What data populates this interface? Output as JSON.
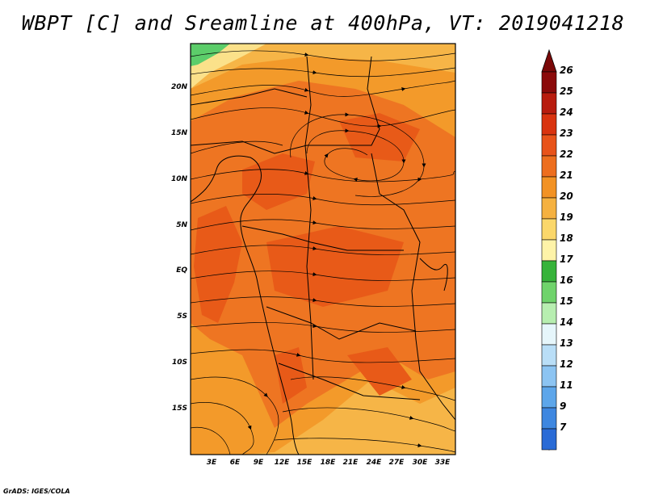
{
  "title": "WBPT [C] and Sreamline at 400hPa, VT: 2019041218",
  "credit": "GrADS: IGES/COLA",
  "map": {
    "variable": "WBPT",
    "units": "C",
    "level": "400hPa",
    "valid_time": "2019041218",
    "lat_labels": [
      "20N",
      "15N",
      "10N",
      "5N",
      "EQ",
      "5S",
      "10S",
      "15S"
    ],
    "lon_labels": [
      "3E",
      "6E",
      "9E",
      "12E",
      "15E",
      "18E",
      "21E",
      "24E",
      "27E",
      "30E",
      "33E"
    ],
    "colorbar": {
      "labels": [
        "26",
        "25",
        "24",
        "23",
        "22",
        "21",
        "20",
        "19",
        "18",
        "17",
        "16",
        "15",
        "14",
        "13",
        "12",
        "11",
        "9",
        "7"
      ],
      "colors": [
        "#8b0a0a",
        "#b81c0e",
        "#d9330f",
        "#e8531a",
        "#ed6e1e",
        "#f29224",
        "#f5b140",
        "#fbd76a",
        "#fef3a8",
        "#36b33a",
        "#6fd36b",
        "#b7eeb0",
        "#e6f6fb",
        "#b9def7",
        "#8cc4f2",
        "#5da6ea",
        "#3e87e0",
        "#2a6bd6"
      ],
      "top_color": "#7a0808",
      "bottom_color": "#1f5fcf"
    },
    "regions": [
      {
        "level": 17,
        "color": "#5ccd6a"
      },
      {
        "level": 19,
        "color": "#fbe18a"
      },
      {
        "level": 20,
        "color": "#f6b547"
      },
      {
        "level": 21,
        "color": "#f39a2a"
      },
      {
        "level": 22,
        "color": "#ee7522"
      },
      {
        "level": 23,
        "color": "#e85a18"
      }
    ]
  }
}
